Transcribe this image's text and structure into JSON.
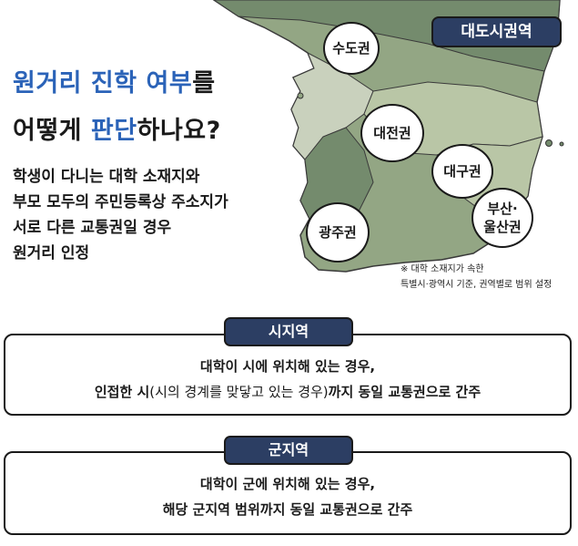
{
  "headline": {
    "line1_part1": "원거리 진학 여부",
    "line1_part2": "를",
    "line2_part1": "어떻게 ",
    "line2_part2": "판단",
    "line2_part3": "하나요?"
  },
  "description": {
    "lines": [
      "학생이 다니는 대학 소재지와",
      "부모 모두의 주민등록상 주소지가",
      "서로 다른 교통권일 경우",
      "원거리 인정"
    ]
  },
  "map": {
    "badge": "대도시권역",
    "regions": {
      "sudo": "수도권",
      "daejeon": "대전권",
      "daegu": "대구권",
      "busan_line1": "부산·",
      "busan_line2": "울산권",
      "gwangju": "광주권"
    },
    "footnote_line1": "※ 대학 소재지가 속한",
    "footnote_line2": "특별시·광역시 기준, 권역별로 범위 설정",
    "colors": {
      "land_dark": "#748b6d",
      "land_mid": "#93a684",
      "land_light": "#b9c6a6",
      "land_pale": "#c9d1bd"
    }
  },
  "sections": {
    "city": {
      "title": "시지역",
      "line1": "대학이 시에 위치해 있는 경우,",
      "line2_a": "인접한 시",
      "line2_b": "(시의 경계를 맞닿고 있는 경우)",
      "line2_c": "까지 동일 교통권으로 간주"
    },
    "county": {
      "title": "군지역",
      "line1": "대학이 군에 위치해 있는 경우,",
      "line2": "해당 군지역 범위까지 동일 교통권으로 간주"
    }
  },
  "theme": {
    "navy": "#2c3e63",
    "blue": "#2b63b8"
  }
}
